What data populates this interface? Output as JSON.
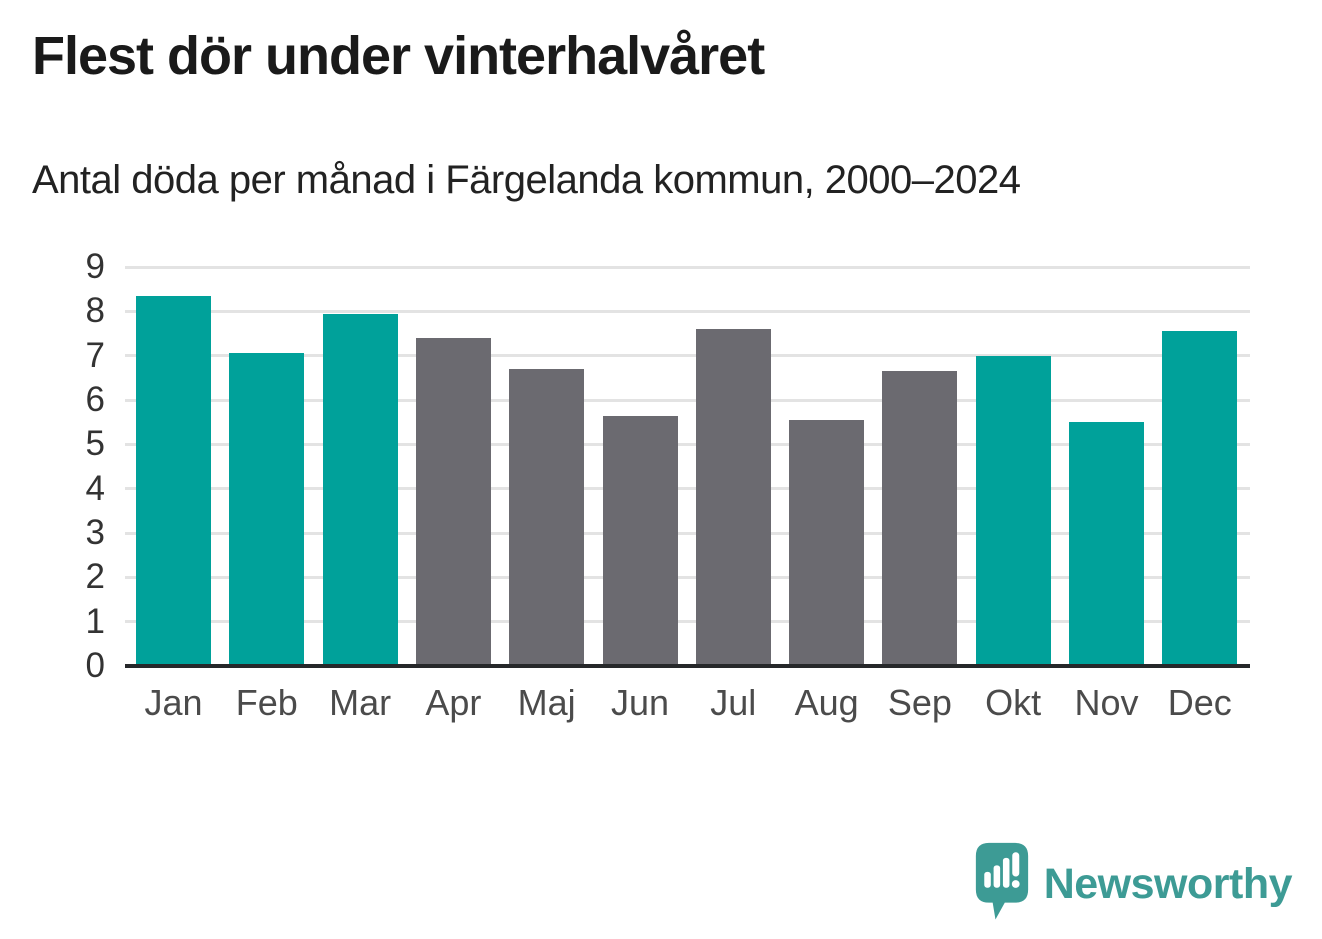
{
  "chart_data": {
    "type": "bar",
    "title": "Flest dör under vinterhalvåret",
    "subtitle": "Antal döda per månad i Färgelanda kommun, 2000–2024",
    "categories": [
      "Jan",
      "Feb",
      "Mar",
      "Apr",
      "Maj",
      "Jun",
      "Jul",
      "Aug",
      "Sep",
      "Okt",
      "Nov",
      "Dec"
    ],
    "values": [
      8.35,
      7.05,
      7.95,
      7.4,
      6.7,
      5.65,
      7.6,
      5.55,
      6.65,
      7.0,
      5.5,
      7.55
    ],
    "bar_groups": [
      "winter",
      "winter",
      "winter",
      "summer",
      "summer",
      "summer",
      "summer",
      "summer",
      "summer",
      "winter",
      "winter",
      "winter"
    ],
    "group_colors": {
      "winter": "#00a19a",
      "summer": "#6b6a70"
    },
    "xlabel": "",
    "ylabel": "",
    "ylim": [
      0,
      9
    ],
    "yticks": [
      0,
      1,
      2,
      3,
      4,
      5,
      6,
      7,
      8,
      9
    ],
    "grid": true,
    "legend": false
  },
  "branding": {
    "logo_text": "Newsworthy",
    "logo_color": "#3d9b95",
    "logo_icon": "newsworthy-speech-bubble-chart-icon"
  }
}
